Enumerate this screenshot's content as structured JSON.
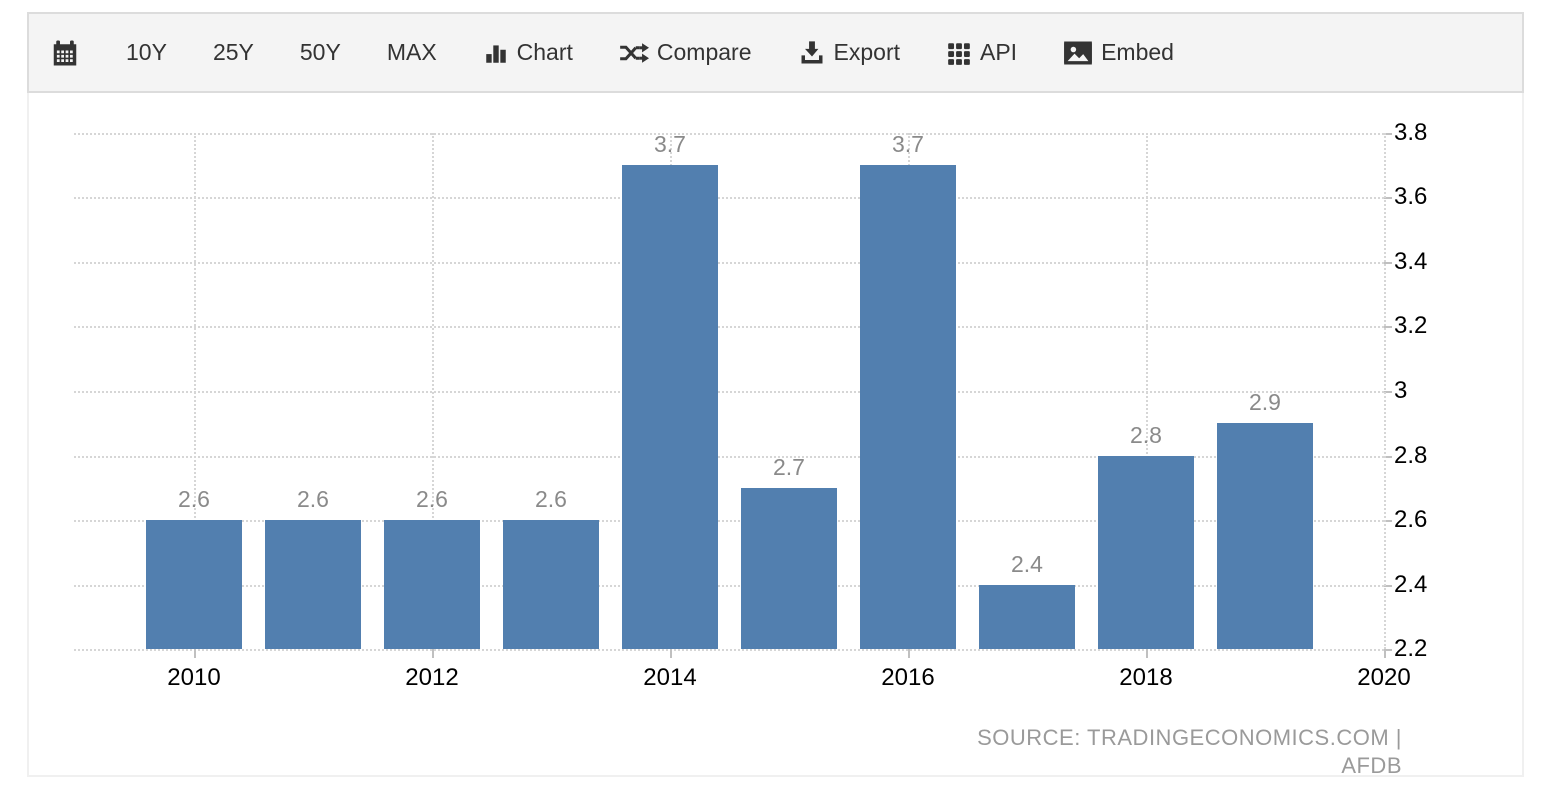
{
  "toolbar": {
    "calendar_icon": "calendar-icon",
    "range_10y": "10Y",
    "range_25y": "25Y",
    "range_50y": "50Y",
    "range_max": "MAX",
    "chart_label": "Chart",
    "compare_label": "Compare",
    "export_label": "Export",
    "api_label": "API",
    "embed_label": "Embed"
  },
  "chart_data": {
    "type": "bar",
    "categories": [
      2010,
      2011,
      2012,
      2013,
      2014,
      2015,
      2016,
      2017,
      2018,
      2019
    ],
    "values": [
      2.6,
      2.6,
      2.6,
      2.6,
      3.7,
      2.7,
      3.7,
      2.4,
      2.8,
      2.9
    ],
    "bar_labels": [
      "2.6",
      "2.6",
      "2.6",
      "2.6",
      "3.7",
      "2.7",
      "3.7",
      "2.4",
      "2.8",
      "2.9"
    ],
    "x_tick_labels": [
      "2010",
      "2012",
      "2014",
      "2016",
      "2018",
      "2020"
    ],
    "x_tick_years": [
      2010,
      2012,
      2014,
      2016,
      2018,
      2020
    ],
    "y_tick_labels": [
      "3.8",
      "3.6",
      "3.4",
      "3.2",
      "3",
      "2.8",
      "2.6",
      "2.4",
      "2.2"
    ],
    "y_tick_values": [
      3.8,
      3.6,
      3.4,
      3.2,
      3.0,
      2.8,
      2.6,
      2.4,
      2.2
    ],
    "ylim": [
      2.2,
      3.8
    ],
    "title": "",
    "xlabel": "",
    "ylabel": "",
    "legend": "none",
    "grid": "dotted",
    "bar_color": "#527FAF",
    "label_color": "#8a8a8a",
    "axis_text_color": "#000000"
  },
  "source": {
    "text": "SOURCE: TRADINGECONOMICS.COM | AFDB"
  }
}
